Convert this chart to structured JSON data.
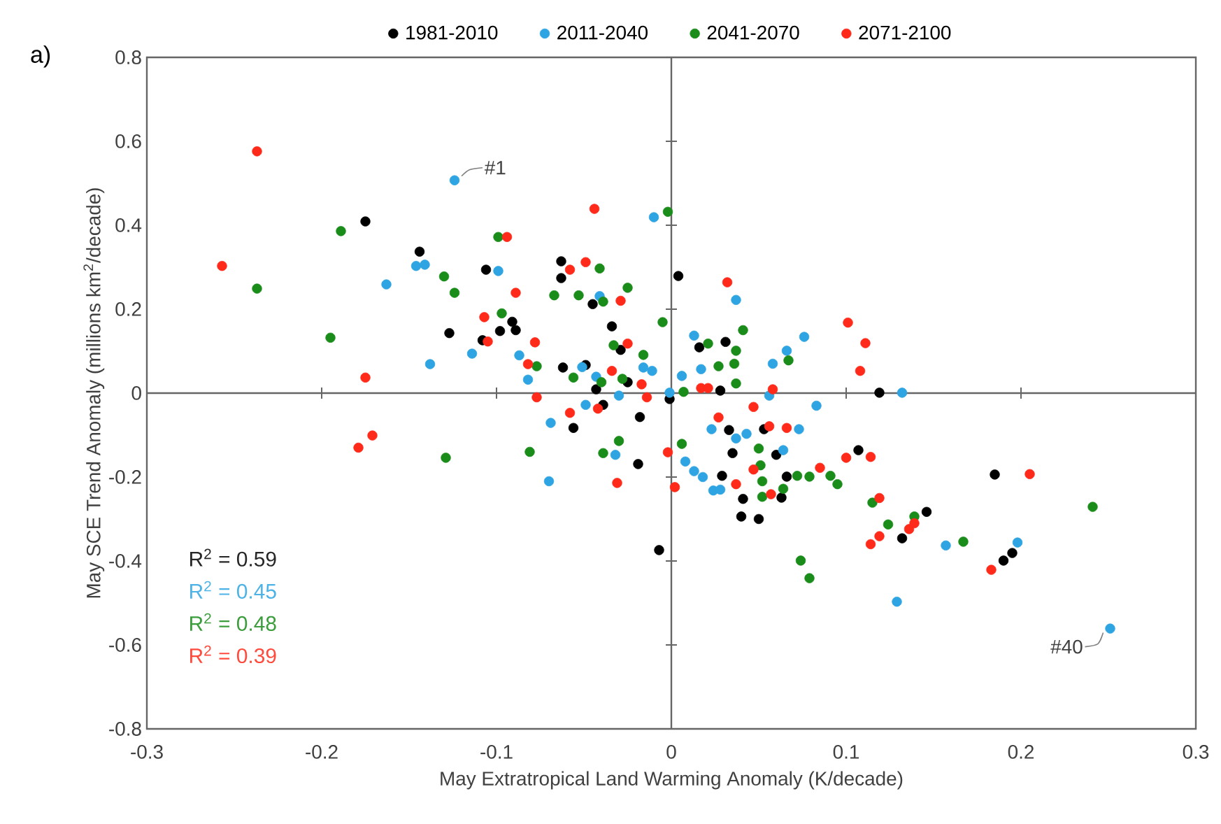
{
  "chart_data": {
    "type": "scatter",
    "title": "a)",
    "xlabel": "May Extratropical Land Warming Anomaly (K/decade)",
    "ylabel": "May SCE Trend Anomaly (millions km$^{2}$/decade)",
    "xlim": [
      -0.3,
      0.3
    ],
    "xticks": [
      -0.3,
      -0.2,
      -0.1,
      0,
      0.1,
      0.2,
      0.3
    ],
    "ylim": [
      -0.8,
      0.8
    ],
    "yticks": [
      -0.8,
      -0.6,
      -0.4,
      -0.2,
      0,
      0.2,
      0.4,
      0.6,
      0.8
    ],
    "legend": "top",
    "marker": "circle",
    "series": [
      {
        "name": "1981-2010",
        "color": "#000000",
        "x": [
          -0.175,
          -0.144,
          -0.106,
          -0.091,
          -0.089,
          -0.098,
          -0.127,
          -0.108,
          0.004,
          -0.063,
          -0.063,
          -0.045,
          -0.034,
          -0.029,
          -0.062,
          -0.049,
          -0.043,
          -0.039,
          -0.025,
          -0.056,
          -0.018,
          -0.001,
          0.028,
          0.016,
          0.031,
          0.119,
          0.033,
          0.053,
          0.035,
          0.06,
          0.029,
          0.041,
          0.04,
          0.05,
          0.063,
          0.066,
          -0.007,
          -0.019,
          0.107,
          0.132,
          0.146,
          0.185,
          0.19,
          0.195
        ],
        "values": [
          0.409,
          0.337,
          0.294,
          0.17,
          0.15,
          0.148,
          0.143,
          0.126,
          0.279,
          0.314,
          0.274,
          0.212,
          0.159,
          0.103,
          0.061,
          0.067,
          0.009,
          -0.028,
          0.026,
          -0.083,
          -0.057,
          -0.014,
          0.006,
          0.109,
          0.122,
          0.001,
          -0.088,
          -0.086,
          -0.143,
          -0.147,
          -0.197,
          -0.252,
          -0.294,
          -0.3,
          -0.249,
          -0.199,
          -0.374,
          -0.169,
          -0.136,
          -0.346,
          -0.283,
          -0.194,
          -0.399,
          -0.381
        ]
      },
      {
        "name": "2011-2040",
        "color": "#2ea4e2",
        "x": [
          -0.124,
          -0.146,
          -0.141,
          -0.099,
          -0.163,
          -0.114,
          -0.138,
          -0.087,
          -0.082,
          -0.01,
          0.037,
          -0.041,
          -0.016,
          -0.011,
          -0.051,
          -0.043,
          -0.049,
          -0.069,
          -0.03,
          -0.001,
          0.006,
          0.013,
          0.017,
          0.058,
          0.066,
          0.076,
          0.056,
          0.083,
          0.132,
          0.023,
          0.037,
          0.043,
          0.073,
          0.064,
          0.008,
          0.013,
          0.018,
          0.024,
          0.028,
          0.129,
          -0.07,
          -0.032,
          0.157,
          0.198,
          0.251
        ],
        "values": [
          0.507,
          0.303,
          0.306,
          0.291,
          0.259,
          0.094,
          0.069,
          0.09,
          0.032,
          0.419,
          0.222,
          0.231,
          0.061,
          0.053,
          0.062,
          0.039,
          -0.028,
          -0.071,
          -0.006,
          0.001,
          0.041,
          0.137,
          0.057,
          0.07,
          0.101,
          0.134,
          -0.006,
          -0.03,
          0.001,
          -0.086,
          -0.108,
          -0.097,
          -0.086,
          -0.136,
          -0.163,
          -0.186,
          -0.2,
          -0.232,
          -0.23,
          -0.497,
          -0.21,
          -0.147,
          -0.363,
          -0.356,
          -0.561
        ]
      },
      {
        "name": "2041-2070",
        "color": "#1a8c1a",
        "x": [
          -0.189,
          -0.099,
          -0.237,
          -0.13,
          -0.124,
          -0.097,
          -0.195,
          -0.077,
          -0.129,
          -0.081,
          -0.002,
          -0.041,
          -0.025,
          -0.067,
          -0.053,
          -0.039,
          -0.005,
          -0.033,
          -0.016,
          -0.056,
          -0.04,
          -0.028,
          0.007,
          0.021,
          0.041,
          0.037,
          0.036,
          0.027,
          0.037,
          0.067,
          0.006,
          0.05,
          0.051,
          0.052,
          0.052,
          0.064,
          0.072,
          0.079,
          0.091,
          0.095,
          0.074,
          0.079,
          -0.039,
          -0.03,
          0.115,
          0.124,
          0.139,
          0.167,
          0.241
        ],
        "values": [
          0.386,
          0.372,
          0.249,
          0.278,
          0.239,
          0.19,
          0.132,
          0.064,
          -0.154,
          -0.14,
          0.432,
          0.297,
          0.251,
          0.233,
          0.233,
          0.218,
          0.169,
          0.114,
          0.091,
          0.037,
          0.026,
          0.034,
          0.003,
          0.118,
          0.15,
          0.101,
          0.07,
          0.064,
          0.023,
          0.078,
          -0.121,
          -0.132,
          -0.172,
          -0.21,
          -0.247,
          -0.228,
          -0.197,
          -0.199,
          -0.197,
          -0.217,
          -0.399,
          -0.441,
          -0.143,
          -0.114,
          -0.261,
          -0.313,
          -0.294,
          -0.354,
          -0.271
        ]
      },
      {
        "name": "2071-2100",
        "color": "#ff2a1a",
        "x": [
          -0.237,
          -0.094,
          -0.257,
          -0.089,
          -0.107,
          -0.105,
          -0.078,
          -0.082,
          -0.175,
          -0.077,
          -0.171,
          -0.179,
          -0.044,
          0.032,
          -0.049,
          -0.058,
          -0.029,
          -0.025,
          -0.034,
          -0.017,
          -0.014,
          -0.058,
          -0.042,
          0.017,
          0.021,
          0.058,
          0.047,
          0.101,
          0.111,
          0.108,
          0.027,
          0.056,
          0.066,
          -0.002,
          0.002,
          0.037,
          0.047,
          0.057,
          0.085,
          -0.031,
          0.1,
          0.114,
          0.119,
          0.114,
          0.119,
          0.136,
          0.139,
          0.205,
          0.183
        ],
        "values": [
          0.576,
          0.372,
          0.303,
          0.239,
          0.181,
          0.123,
          0.121,
          0.069,
          0.037,
          -0.01,
          -0.101,
          -0.13,
          0.439,
          0.264,
          0.312,
          0.294,
          0.22,
          0.118,
          0.053,
          0.021,
          -0.01,
          -0.047,
          -0.037,
          0.012,
          0.012,
          0.009,
          -0.033,
          0.168,
          0.119,
          0.053,
          -0.058,
          -0.079,
          -0.083,
          -0.141,
          -0.224,
          -0.217,
          -0.182,
          -0.241,
          -0.178,
          -0.214,
          -0.154,
          -0.152,
          -0.25,
          -0.36,
          -0.341,
          -0.324,
          -0.31,
          -0.193,
          -0.421
        ]
      }
    ],
    "annotations": [
      "R$^{2}$ = 0.59",
      "R$^{2}$ = 0.45",
      "R$^{2}$ = 0.48",
      "R$^{2}$ = 0.39",
      {
        "text": "#1",
        "x": -0.124,
        "y": 0.507
      },
      {
        "text": "#40",
        "x": 0.251,
        "y": -0.561
      }
    ]
  }
}
